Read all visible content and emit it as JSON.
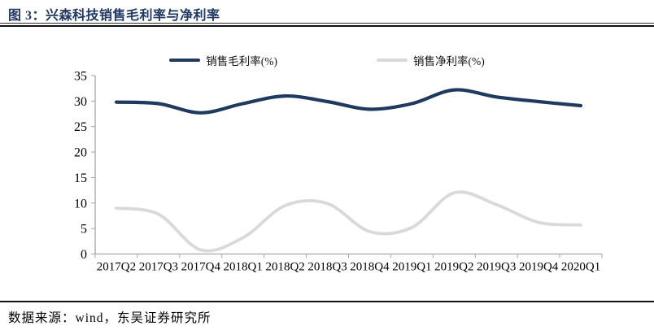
{
  "title": "图 3：兴森科技销售毛利率与净利率",
  "footer": {
    "source_text": "数据来源：wind，东吴证券研究所"
  },
  "colors": {
    "title_navy": "#1f3864",
    "gross_line": "#1e3a5f",
    "net_line": "#d9d9d9",
    "axis_gray": "#a6a6a6",
    "rule_black": "#111111"
  },
  "chart_data": {
    "type": "line",
    "title": "兴森科技销售毛利率与净利率",
    "categories": [
      "2017Q2",
      "2017Q3",
      "2017Q4",
      "2018Q1",
      "2018Q2",
      "2018Q3",
      "2018Q4",
      "2019Q1",
      "2019Q2",
      "2019Q3",
      "2019Q4",
      "2020Q1"
    ],
    "series": [
      {
        "name": "销售毛利率(%)",
        "color": "#1e3a5f",
        "stroke_width": 4.2,
        "values": [
          29.8,
          29.5,
          27.7,
          29.5,
          31.0,
          29.9,
          28.4,
          29.5,
          32.2,
          30.8,
          29.9,
          29.1
        ]
      },
      {
        "name": "销售净利率(%)",
        "color": "#d9d9d9",
        "stroke_width": 3.8,
        "values": [
          9.0,
          7.8,
          0.8,
          3.2,
          9.5,
          9.9,
          4.4,
          5.2,
          12.0,
          9.7,
          6.2,
          5.7
        ]
      }
    ],
    "ylim": [
      0,
      35
    ],
    "ytick_step": 5,
    "xlabel": "",
    "ylabel": "",
    "legend_position": "top-center",
    "grid": false,
    "smooth": true
  }
}
